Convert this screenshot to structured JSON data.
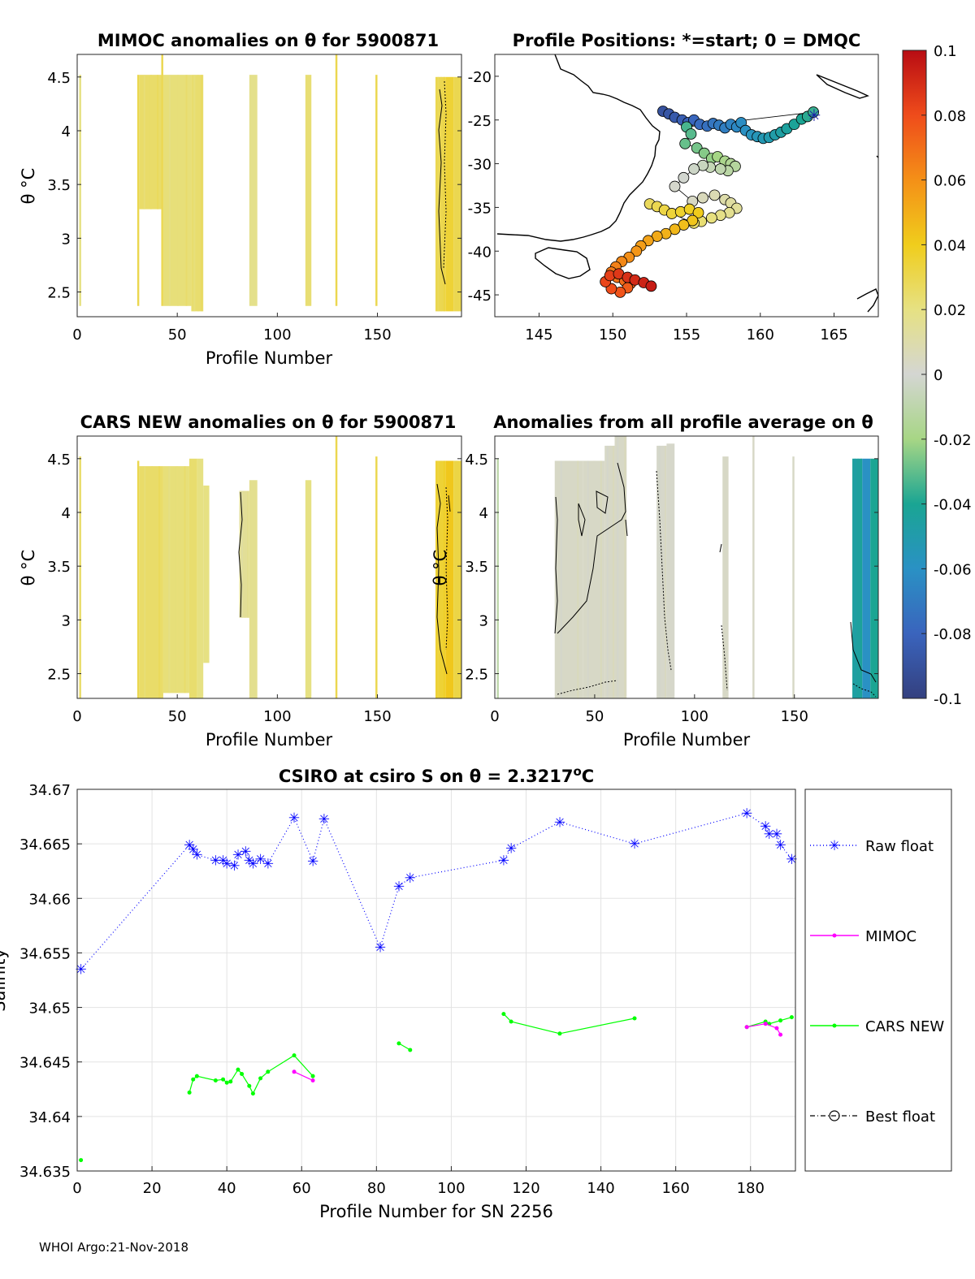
{
  "footer": "WHOI Argo:21-Nov-2018",
  "panels": {
    "mimoc": {
      "title": "MIMOC anomalies on θ  for 5900871",
      "xlabel": "Profile Number",
      "ylabel": "θ °C",
      "xticks": [
        "0",
        "50",
        "100",
        "150"
      ],
      "yticks": [
        "2.5",
        "3",
        "3.5",
        "4",
        "4.5"
      ]
    },
    "positions": {
      "title": "Profile Positions: *=start; 0 = DMQC",
      "xticks": [
        "145",
        "150",
        "155",
        "160",
        "165"
      ],
      "yticks": [
        "-20",
        "-25",
        "-30",
        "-35",
        "-40",
        "-45"
      ]
    },
    "cars": {
      "title": "CARS NEW anomalies on θ for 5900871",
      "xlabel": "Profile Number",
      "ylabel": "θ °C",
      "xticks": [
        "0",
        "50",
        "100",
        "150"
      ],
      "yticks": [
        "2.5",
        "3",
        "3.5",
        "4",
        "4.5"
      ]
    },
    "avg": {
      "title": "Anomalies from all profile average on θ",
      "xlabel": "Profile Number",
      "ylabel": "θ °C",
      "xticks": [
        "0",
        "50",
        "100",
        "150"
      ],
      "yticks": [
        "2.5",
        "3",
        "3.5",
        "4",
        "4.5"
      ]
    }
  },
  "colorbar": {
    "ticks": [
      "0.1",
      "0.08",
      "0.06",
      "0.04",
      "0.02",
      "0",
      "-0.02",
      "-0.04",
      "-0.06",
      "-0.08",
      "-0.1"
    ]
  },
  "chart_data": [
    {
      "type": "heatmap",
      "title": "MIMOC anomalies on θ  for 5900871",
      "xlabel": "Profile Number",
      "ylabel": "θ °C",
      "xlim": [
        0,
        192
      ],
      "ylim": [
        2.27,
        4.71
      ],
      "clim": [
        -0.1,
        0.1
      ],
      "columns": [
        {
          "x": [
            1,
            2
          ],
          "y": [
            2.37,
            4.52
          ],
          "v": 0.02
        },
        {
          "x": [
            30,
            31
          ],
          "y": [
            2.37,
            4.52
          ],
          "v": 0.03
        },
        {
          "x": [
            31,
            42
          ],
          "y": [
            3.27,
            4.52
          ],
          "v": 0.025
        },
        {
          "x": [
            42,
            43
          ],
          "y": [
            2.37,
            4.72
          ],
          "v": 0.03
        },
        {
          "x": [
            43,
            57
          ],
          "y": [
            2.37,
            4.52
          ],
          "v": 0.022
        },
        {
          "x": [
            57,
            63
          ],
          "y": [
            2.32,
            4.52
          ],
          "v": 0.024
        },
        {
          "x": [
            86,
            90
          ],
          "y": [
            2.37,
            4.52
          ],
          "v": 0.018
        },
        {
          "x": [
            114,
            117
          ],
          "y": [
            2.37,
            4.52
          ],
          "v": 0.023
        },
        {
          "x": [
            129,
            130
          ],
          "y": [
            2.37,
            4.72
          ],
          "v": 0.03
        },
        {
          "x": [
            149,
            150
          ],
          "y": [
            2.37,
            4.52
          ],
          "v": 0.03
        },
        {
          "x": [
            179,
            184
          ],
          "y": [
            2.32,
            4.5
          ],
          "v": 0.03
        },
        {
          "x": [
            184,
            188
          ],
          "y": [
            2.32,
            4.5
          ],
          "v": 0.035
        },
        {
          "x": [
            188,
            192
          ],
          "y": [
            2.32,
            4.5
          ],
          "v": 0.03
        }
      ]
    },
    {
      "type": "scatter",
      "title": "Profile Positions: *=start; 0 = DMQC",
      "xlim": [
        142,
        168
      ],
      "ylim": [
        -47.5,
        -17.5
      ],
      "lon": [
        153.4,
        153.8,
        154.2,
        154.7,
        155.1,
        155.5,
        155.9,
        156.4,
        156.8,
        157.2,
        157.6,
        158.0,
        158.4,
        158.7,
        159.0,
        159.4,
        159.8,
        160.2,
        160.6,
        161.0,
        161.4,
        161.8,
        162.3,
        162.8,
        163.2,
        163.6,
        155.0,
        155.3,
        154.9,
        155.7,
        156.2,
        156.7,
        157.1,
        157.6,
        158.0,
        158.3,
        157.8,
        157.3,
        156.6,
        156.1,
        155.5,
        154.8,
        154.2,
        155.4,
        156.1,
        156.9,
        157.6,
        158.0,
        158.4,
        157.9,
        157.3,
        156.7,
        156.0,
        155.5,
        152.5,
        153.0,
        153.5,
        154.0,
        154.6,
        155.2,
        155.8,
        155.4,
        154.8,
        154.2,
        153.6,
        153.0,
        152.4,
        151.9,
        151.6,
        151.1,
        150.6,
        150.2,
        149.9,
        150.3,
        150.8,
        151.2,
        151.0,
        150.5,
        149.9,
        149.5,
        149.8,
        150.4,
        151.0,
        151.5,
        152.1,
        152.6
      ],
      "lat": [
        -24.0,
        -24.3,
        -24.7,
        -25.0,
        -25.3,
        -25.0,
        -25.5,
        -25.7,
        -25.4,
        -25.6,
        -25.9,
        -25.5,
        -25.8,
        -25.3,
        -26.2,
        -26.7,
        -26.9,
        -27.1,
        -27.0,
        -26.7,
        -26.4,
        -26.0,
        -25.5,
        -24.9,
        -24.6,
        -24.1,
        -25.8,
        -26.6,
        -27.7,
        -28.2,
        -28.8,
        -29.4,
        -29.2,
        -29.7,
        -30.0,
        -30.3,
        -30.8,
        -30.6,
        -30.4,
        -30.2,
        -30.6,
        -31.6,
        -32.6,
        -34.3,
        -33.9,
        -33.6,
        -34.1,
        -34.5,
        -35.1,
        -35.6,
        -35.9,
        -36.2,
        -36.6,
        -36.8,
        -34.6,
        -34.9,
        -35.3,
        -35.7,
        -35.5,
        -35.2,
        -35.6,
        -36.5,
        -37.0,
        -37.5,
        -38.0,
        -38.3,
        -38.8,
        -39.4,
        -40.0,
        -40.7,
        -41.2,
        -41.8,
        -42.4,
        -43.0,
        -43.4,
        -43.7,
        -44.2,
        -44.7,
        -44.3,
        -43.5,
        -42.8,
        -42.6,
        -43.0,
        -43.3,
        -43.6,
        -44.0
      ],
      "colors_by": "profile number (colorbar)",
      "start_marker": "*"
    },
    {
      "type": "heatmap",
      "title": "CARS NEW anomalies on θ for 5900871",
      "xlabel": "Profile Number",
      "ylabel": "θ °C",
      "xlim": [
        0,
        192
      ],
      "ylim": [
        2.27,
        4.71
      ],
      "clim": [
        -0.1,
        0.1
      ],
      "columns": [
        {
          "x": [
            1,
            2
          ],
          "y": [
            2.27,
            4.52
          ],
          "v": 0.025
        },
        {
          "x": [
            30,
            31
          ],
          "y": [
            2.27,
            4.48
          ],
          "v": 0.03
        },
        {
          "x": [
            31,
            43
          ],
          "y": [
            2.27,
            4.43
          ],
          "v": 0.025
        },
        {
          "x": [
            43,
            56
          ],
          "y": [
            2.32,
            4.43
          ],
          "v": 0.022
        },
        {
          "x": [
            56,
            60
          ],
          "y": [
            2.27,
            4.5
          ],
          "v": 0.024
        },
        {
          "x": [
            60,
            63
          ],
          "y": [
            2.27,
            4.5
          ],
          "v": 0.02
        },
        {
          "x": [
            63,
            66
          ],
          "y": [
            2.6,
            4.25
          ],
          "v": 0.02
        },
        {
          "x": [
            81,
            86
          ],
          "y": [
            3.02,
            4.2
          ],
          "v": 0.015
        },
        {
          "x": [
            86,
            90
          ],
          "y": [
            2.27,
            4.3
          ],
          "v": 0.017
        },
        {
          "x": [
            114,
            117
          ],
          "y": [
            2.27,
            4.3
          ],
          "v": 0.02
        },
        {
          "x": [
            129,
            130
          ],
          "y": [
            2.27,
            4.72
          ],
          "v": 0.03
        },
        {
          "x": [
            149,
            150
          ],
          "y": [
            2.27,
            4.52
          ],
          "v": 0.03
        },
        {
          "x": [
            179,
            184
          ],
          "y": [
            2.27,
            4.48
          ],
          "v": 0.035
        },
        {
          "x": [
            184,
            188
          ],
          "y": [
            2.27,
            4.48
          ],
          "v": 0.042
        },
        {
          "x": [
            188,
            192
          ],
          "y": [
            2.27,
            4.48
          ],
          "v": 0.032
        }
      ]
    },
    {
      "type": "heatmap",
      "title": "Anomalies from all profile average on θ",
      "xlabel": "Profile Number",
      "ylabel": "θ °C",
      "xlim": [
        0,
        192
      ],
      "ylim": [
        2.27,
        4.71
      ],
      "clim": [
        -0.1,
        0.1
      ],
      "columns": [
        {
          "x": [
            1,
            2
          ],
          "y": [
            2.27,
            4.5
          ],
          "v": -0.01
        },
        {
          "x": [
            30,
            44
          ],
          "y": [
            2.27,
            4.48
          ],
          "v": 0.003
        },
        {
          "x": [
            44,
            55
          ],
          "y": [
            2.27,
            4.48
          ],
          "v": 0.003
        },
        {
          "x": [
            55,
            60
          ],
          "y": [
            2.27,
            4.62
          ],
          "v": 0.003
        },
        {
          "x": [
            60,
            66
          ],
          "y": [
            2.27,
            4.72
          ],
          "v": 0.003
        },
        {
          "x": [
            81,
            86
          ],
          "y": [
            2.27,
            4.62
          ],
          "v": 0.002
        },
        {
          "x": [
            86,
            90
          ],
          "y": [
            2.27,
            4.64
          ],
          "v": 0.002
        },
        {
          "x": [
            114,
            117
          ],
          "y": [
            2.27,
            4.52
          ],
          "v": 0.003
        },
        {
          "x": [
            129,
            130
          ],
          "y": [
            2.27,
            4.71
          ],
          "v": 0.003
        },
        {
          "x": [
            149,
            150
          ],
          "y": [
            2.27,
            4.52
          ],
          "v": 0.003
        },
        {
          "x": [
            179,
            184
          ],
          "y": [
            2.27,
            4.5
          ],
          "v": -0.045
        },
        {
          "x": [
            184,
            188
          ],
          "y": [
            2.27,
            4.5
          ],
          "v": -0.06
        },
        {
          "x": [
            188,
            192
          ],
          "y": [
            2.27,
            4.5
          ],
          "v": -0.04
        }
      ]
    },
    {
      "type": "line",
      "title": "CSIRO at csiro S on θ = 2.3217°C",
      "xlabel": "Profile Number for SN 2256",
      "ylabel": "Salinity",
      "xlim": [
        0,
        192
      ],
      "ylim": [
        34.635,
        34.67
      ],
      "grid": true,
      "legend_position": "right",
      "xticks": [
        "0",
        "20",
        "40",
        "60",
        "80",
        "100",
        "120",
        "140",
        "160",
        "180"
      ],
      "yticks": [
        "34.635",
        "34.64",
        "34.645",
        "34.65",
        "34.655",
        "34.66",
        "34.665",
        "34.67"
      ],
      "series": [
        {
          "name": "Raw float",
          "style": "dotted-star",
          "color": "#0000ff",
          "x": [
            1,
            30,
            31,
            32,
            37,
            39,
            40,
            42,
            43,
            45,
            46,
            47,
            49,
            51,
            58,
            63,
            66,
            81,
            86,
            89,
            114,
            116,
            129,
            149,
            179,
            184,
            185,
            187,
            188,
            191
          ],
          "y": [
            34.6535,
            34.6649,
            34.6645,
            34.664,
            34.6635,
            34.6635,
            34.6632,
            34.663,
            34.664,
            34.6643,
            34.6635,
            34.6632,
            34.6636,
            34.6632,
            34.6674,
            34.6634,
            34.6673,
            34.6555,
            34.6611,
            34.6619,
            34.6635,
            34.6646,
            34.667,
            34.665,
            34.6678,
            34.6666,
            34.6659,
            34.6659,
            34.6649,
            34.6636
          ]
        },
        {
          "name": "MIMOC",
          "style": "solid-dot",
          "color": "#ff00ff",
          "x": [
            58,
            63,
            179,
            184,
            187,
            188
          ],
          "y": [
            34.6441,
            34.6433,
            34.6482,
            34.6485,
            34.6481,
            34.6475
          ]
        },
        {
          "name": "CARS NEW",
          "style": "solid-dot",
          "color": "#00ff00",
          "x": [
            1,
            30,
            31,
            32,
            37,
            39,
            40,
            41,
            43,
            44,
            46,
            47,
            49,
            51,
            58,
            63,
            86,
            89,
            114,
            116,
            129,
            149,
            179,
            184,
            185,
            188,
            191
          ],
          "y": [
            34.636,
            34.6422,
            34.6434,
            34.6437,
            34.6433,
            34.6434,
            34.6431,
            34.6432,
            34.6443,
            34.6439,
            34.6428,
            34.6421,
            34.6435,
            34.6441,
            34.6456,
            34.6437,
            34.6467,
            34.6461,
            34.6494,
            34.6487,
            34.6476,
            34.649,
            34.6482,
            34.6487,
            34.6485,
            34.6488,
            34.6491
          ]
        },
        {
          "name": "Best float",
          "style": "dashdot-circle",
          "color": "#000000",
          "x": [],
          "y": []
        }
      ]
    }
  ]
}
